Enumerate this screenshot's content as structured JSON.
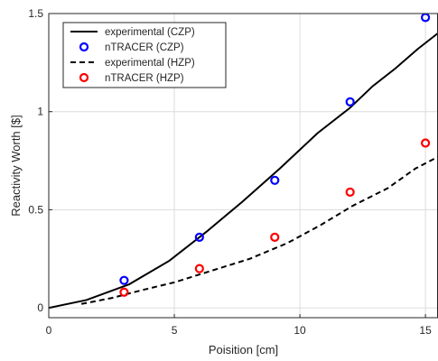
{
  "chart_data": {
    "type": "line",
    "title": "",
    "xlabel": "Poisition [cm]",
    "ylabel": "Reactivity Worth [$]",
    "xlim": [
      0,
      15.5
    ],
    "ylim": [
      -0.05,
      1.5
    ],
    "xticks": [
      0,
      5,
      10,
      15
    ],
    "yticks": [
      0,
      0.5,
      1,
      1.5
    ],
    "xtick_labels": [
      "0",
      "5",
      "10",
      "15"
    ],
    "ytick_labels": [
      "0",
      "0.5",
      "1",
      "1.5"
    ],
    "grid": true,
    "legend_position": "top-left",
    "series": [
      {
        "name": "experimental (CZP)",
        "style": "solid-line",
        "color": "#000000",
        "x": [
          0,
          1.5,
          3.2,
          4.8,
          6.3,
          7.7,
          9.2,
          10.7,
          12.0,
          12.9,
          13.8,
          14.7,
          15.5
        ],
        "y": [
          0,
          0.04,
          0.12,
          0.24,
          0.39,
          0.54,
          0.71,
          0.89,
          1.02,
          1.13,
          1.22,
          1.32,
          1.4
        ]
      },
      {
        "name": "nTRACER (CZP)",
        "style": "circle-marker",
        "color": "#0000ff",
        "x": [
          3,
          6,
          9,
          12,
          15
        ],
        "y": [
          0.14,
          0.36,
          0.65,
          1.05,
          1.48
        ]
      },
      {
        "name": "experimental (HZP)",
        "style": "dashed-line",
        "color": "#000000",
        "x": [
          1.3,
          2.5,
          3.7,
          5.0,
          6.5,
          8.0,
          9.5,
          10.8,
          12.1,
          13.5,
          14.6,
          15.5
        ],
        "y": [
          0.02,
          0.05,
          0.09,
          0.13,
          0.19,
          0.25,
          0.33,
          0.42,
          0.52,
          0.61,
          0.71,
          0.77
        ]
      },
      {
        "name": "nTRACER (HZP)",
        "style": "circle-marker",
        "color": "#ff0000",
        "x": [
          3,
          6,
          9,
          12,
          15
        ],
        "y": [
          0.08,
          0.2,
          0.36,
          0.59,
          0.84
        ]
      }
    ]
  }
}
